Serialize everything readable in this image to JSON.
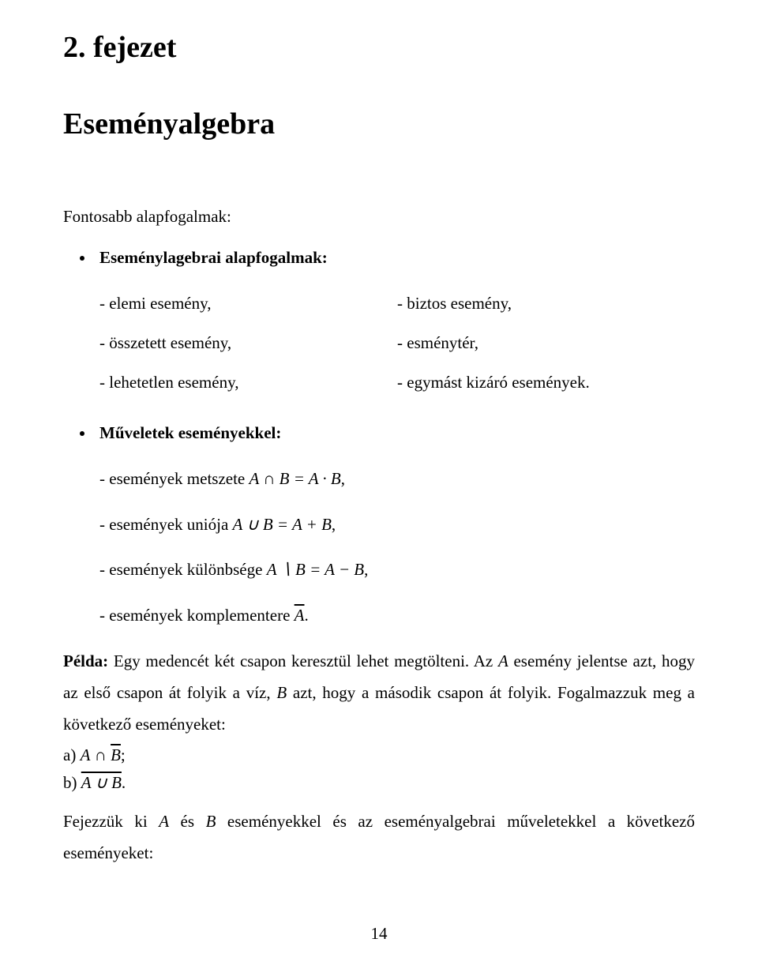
{
  "colors": {
    "background": "#ffffff",
    "text": "#000000"
  },
  "typography": {
    "body_family": "Times New Roman",
    "body_size_pt": 16,
    "heading_size_pt": 28,
    "heading_weight": "bold",
    "line_height": 1.6
  },
  "page_number": "14",
  "chapter": {
    "label": "2. fejezet",
    "title": "Eseményalgebra"
  },
  "intro": "Fontosabb alapfogalmak:",
  "section1": {
    "heading": "Eseménylagebrai alapfogalmak:",
    "left": [
      "- elemi esemény,",
      "- összetett esemény,",
      "- lehetetlen esemény,"
    ],
    "right": [
      "- biztos esemény,",
      "- esménytér,",
      "- egymást kizáró események."
    ]
  },
  "section2": {
    "heading": "Műveletek eseményekkel:",
    "items": {
      "metszet_pre": "- események metszete ",
      "metszet_math": "A ∩ B = A · B",
      "metszet_post": ",",
      "unio_pre": "- események uniója ",
      "unio_math": "A ∪ B = A + B",
      "unio_post": ",",
      "kulon_pre": "- események különbsége ",
      "kulon_math": "A ∖ B = A − B",
      "kulon_post": ",",
      "kompl_pre": "- események komplementere ",
      "kompl_over": "A",
      "kompl_post": "."
    }
  },
  "example": {
    "label": "Példa:",
    "p1a": " Egy medencét két csapon keresztül lehet megtölteni. Az ",
    "A1": "A",
    "p1b": " esemény jelentse azt, hogy az első csapon át folyik a víz, ",
    "B1": "B",
    "p1c": " azt, hogy a második csapon át folyik. Fogalmazzuk meg a következő eseményeket:",
    "a_pre": "a) ",
    "a_math_A": "A",
    "a_math_cap": " ∩ ",
    "a_math_B": "B",
    "a_post": ";",
    "b_pre": "b) ",
    "b_over": "A ∪ B",
    "b_post": ".",
    "p2a": "Fejezzük ki ",
    "A2": "A",
    "p2b": " és ",
    "B2": "B",
    "p2c": " eseményekkel és az eseményalgebrai műveletekkel a következő eseményeket:"
  }
}
